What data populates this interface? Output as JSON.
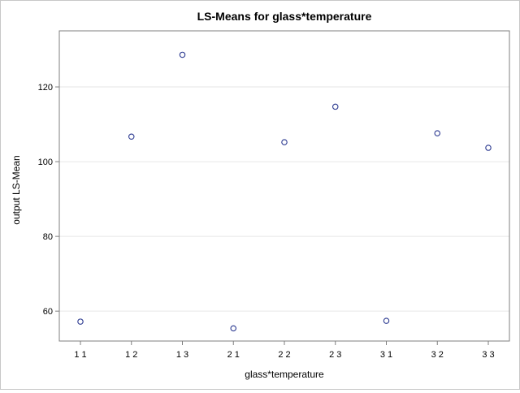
{
  "chart_data": {
    "type": "scatter",
    "title": "LS-Means for glass*temperature",
    "xlabel": "glass*temperature",
    "ylabel": "output LS-Mean",
    "categories": [
      "1 1",
      "1 2",
      "1 3",
      "2 1",
      "2 2",
      "2 3",
      "3 1",
      "3 2",
      "3 3"
    ],
    "values": [
      57.2,
      106.7,
      128.6,
      55.4,
      105.2,
      114.7,
      57.4,
      107.6,
      103.7
    ],
    "yticks": [
      60,
      80,
      100,
      120
    ],
    "ylim": [
      52,
      135
    ],
    "grid": true,
    "marker": "open-circle",
    "colors": {
      "marker": "#2b3990",
      "grid": "#e6e6e6",
      "axis": "#7f7f7f"
    }
  }
}
